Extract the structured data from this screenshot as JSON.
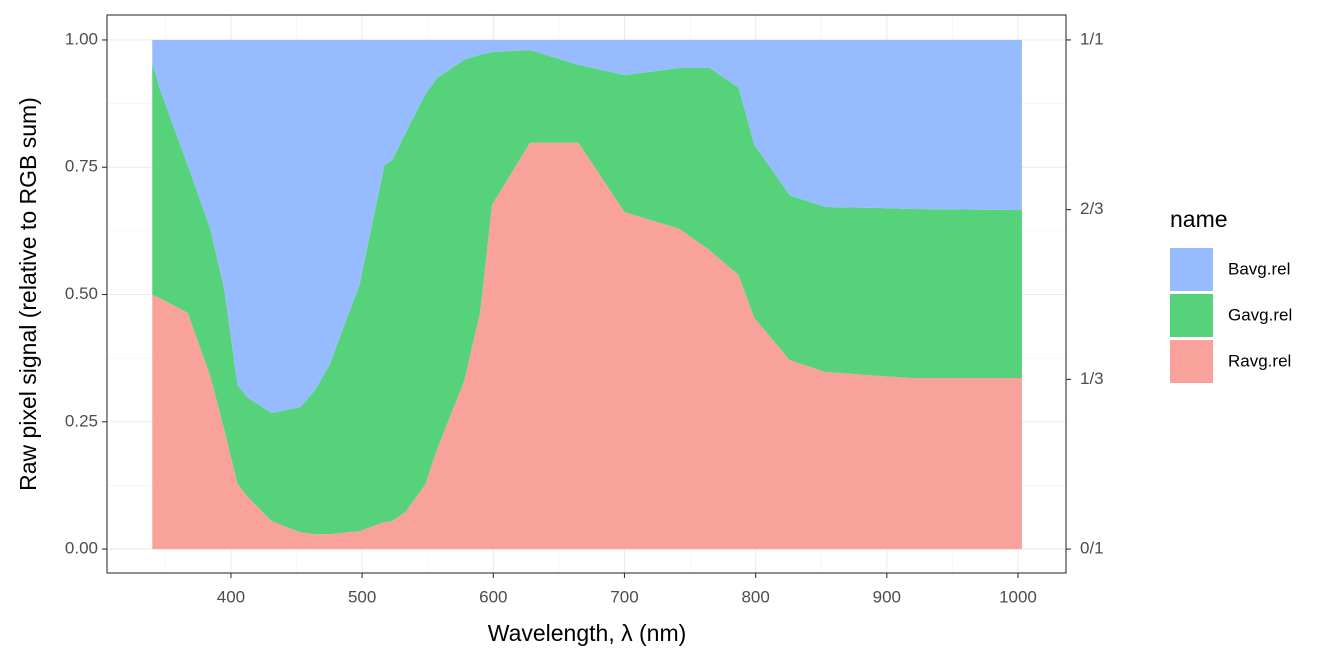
{
  "chart_data": {
    "type": "stacked-area",
    "x_label": "Wavelength,  λ (nm)",
    "y_label": "Raw pixel signal (relative to RGB sum)",
    "legend_title": "name",
    "x": [
      340,
      346,
      367,
      384,
      395,
      405,
      413,
      431,
      453,
      464,
      475,
      498,
      517,
      523,
      533,
      548,
      557,
      578,
      590,
      599,
      628,
      665,
      700,
      742,
      765,
      787,
      799,
      826,
      853,
      895,
      918,
      1003
    ],
    "series": [
      {
        "name": "Bavg.rel",
        "color": "#97bbff",
        "values": [
          0.045,
          0.098,
          0.246,
          0.369,
          0.491,
          0.678,
          0.703,
          0.733,
          0.721,
          0.688,
          0.639,
          0.481,
          0.246,
          0.236,
          0.183,
          0.108,
          0.075,
          0.039,
          0.029,
          0.024,
          0.02,
          0.049,
          0.069,
          0.055,
          0.055,
          0.094,
          0.206,
          0.305,
          0.328,
          0.33,
          0.332,
          0.334
        ]
      },
      {
        "name": "Gavg.rel",
        "color": "#55d27a",
        "values": [
          0.456,
          0.409,
          0.29,
          0.289,
          0.275,
          0.194,
          0.195,
          0.212,
          0.246,
          0.283,
          0.332,
          0.484,
          0.701,
          0.709,
          0.744,
          0.766,
          0.73,
          0.629,
          0.505,
          0.3,
          0.182,
          0.153,
          0.269,
          0.316,
          0.358,
          0.368,
          0.34,
          0.324,
          0.324,
          0.33,
          0.332,
          0.33
        ]
      },
      {
        "name": "Ravg.rel",
        "color": "#f9a29c",
        "values": [
          0.499,
          0.493,
          0.464,
          0.342,
          0.234,
          0.128,
          0.102,
          0.055,
          0.033,
          0.029,
          0.029,
          0.035,
          0.053,
          0.055,
          0.073,
          0.126,
          0.195,
          0.332,
          0.466,
          0.676,
          0.798,
          0.798,
          0.662,
          0.629,
          0.587,
          0.538,
          0.454,
          0.371,
          0.348,
          0.34,
          0.336,
          0.336
        ]
      }
    ],
    "xlim": [
      305.5,
      1036.6
    ],
    "ylim": [
      -0.047,
      1.049
    ],
    "xticks": [
      400,
      500,
      600,
      700,
      800,
      900,
      1000
    ],
    "x_minor_ticks": [
      350,
      450,
      550,
      650,
      750,
      850,
      950
    ],
    "yticks": [
      {
        "value": 0,
        "label": "0.00"
      },
      {
        "value": 0.25,
        "label": "0.25"
      },
      {
        "value": 0.5,
        "label": "0.50"
      },
      {
        "value": 0.75,
        "label": "0.75"
      },
      {
        "value": 1,
        "label": "1.00"
      }
    ],
    "y_minor_ticks": [
      0.125,
      0.375,
      0.625,
      0.875
    ],
    "y2ticks": [
      {
        "value": 0,
        "label": "0/1"
      },
      {
        "value": 0.3333,
        "label": "1/3"
      },
      {
        "value": 0.6667,
        "label": "2/3"
      },
      {
        "value": 1,
        "label": "1/1"
      }
    ],
    "grid": true
  }
}
